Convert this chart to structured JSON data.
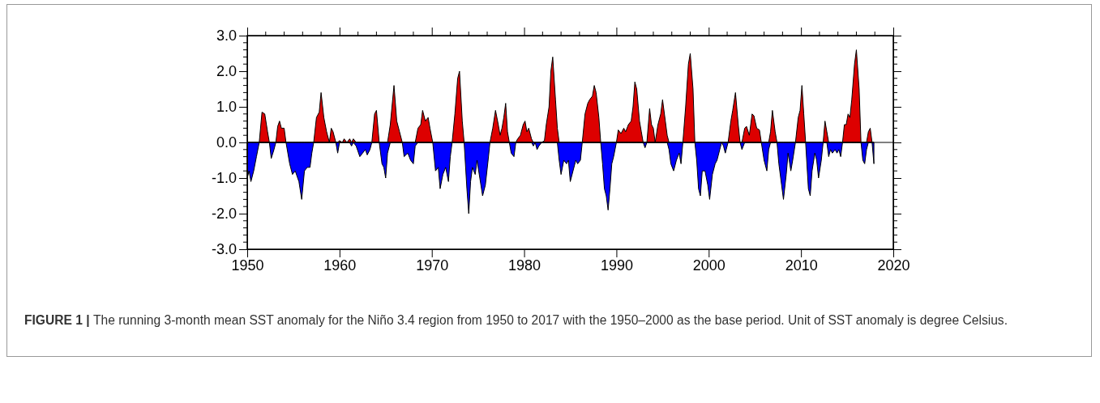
{
  "chart_data": {
    "type": "area",
    "x": [
      1950.0,
      1950.2,
      1950.4,
      1950.7,
      1951.0,
      1951.3,
      1951.6,
      1951.9,
      1952.2,
      1952.4,
      1952.6,
      1952.9,
      1953.1,
      1953.3,
      1953.5,
      1953.7,
      1954.0,
      1954.2,
      1954.6,
      1954.9,
      1955.2,
      1955.6,
      1955.9,
      1956.2,
      1956.5,
      1956.8,
      1957.0,
      1957.2,
      1957.5,
      1957.8,
      1958.0,
      1958.3,
      1958.6,
      1958.9,
      1959.1,
      1959.3,
      1959.6,
      1959.8,
      1960.0,
      1960.3,
      1960.5,
      1960.8,
      1961.1,
      1961.3,
      1961.5,
      1961.8,
      1962.2,
      1962.5,
      1962.8,
      1963.0,
      1963.3,
      1963.5,
      1963.8,
      1964.0,
      1964.3,
      1964.6,
      1964.8,
      1965.0,
      1965.2,
      1965.5,
      1965.9,
      1966.2,
      1966.5,
      1966.8,
      1967.0,
      1967.4,
      1967.7,
      1968.0,
      1968.2,
      1968.5,
      1968.8,
      1969.0,
      1969.3,
      1969.6,
      1969.8,
      1970.1,
      1970.4,
      1970.7,
      1970.9,
      1971.2,
      1971.5,
      1971.8,
      1972.0,
      1972.2,
      1972.5,
      1972.8,
      1973.0,
      1973.3,
      1973.5,
      1973.8,
      1974.0,
      1974.2,
      1974.4,
      1974.7,
      1974.9,
      1975.2,
      1975.5,
      1975.8,
      1976.1,
      1976.3,
      1976.6,
      1976.9,
      1977.2,
      1977.4,
      1977.6,
      1977.8,
      1978.0,
      1978.2,
      1978.4,
      1978.6,
      1978.9,
      1979.1,
      1979.3,
      1979.6,
      1979.9,
      1980.1,
      1980.3,
      1980.5,
      1980.8,
      1981.0,
      1981.2,
      1981.4,
      1981.6,
      1981.9,
      1982.2,
      1982.4,
      1982.7,
      1982.9,
      1983.1,
      1983.4,
      1983.6,
      1983.8,
      1984.0,
      1984.3,
      1984.6,
      1984.8,
      1985.0,
      1985.3,
      1985.6,
      1985.8,
      1986.1,
      1986.3,
      1986.6,
      1986.9,
      1987.1,
      1987.4,
      1987.6,
      1987.8,
      1988.1,
      1988.3,
      1988.5,
      1988.7,
      1988.9,
      1989.1,
      1989.3,
      1989.5,
      1989.7,
      1990.0,
      1990.2,
      1990.5,
      1990.8,
      1991.0,
      1991.3,
      1991.6,
      1991.8,
      1992.0,
      1992.2,
      1992.5,
      1992.7,
      1992.9,
      1993.1,
      1993.3,
      1993.6,
      1993.8,
      1994.0,
      1994.2,
      1994.5,
      1994.8,
      1995.0,
      1995.3,
      1995.5,
      1995.7,
      1995.9,
      1996.2,
      1996.5,
      1996.8,
      1997.0,
      1997.2,
      1997.5,
      1997.8,
      1998.0,
      1998.3,
      1998.5,
      1998.7,
      1998.9,
      1999.1,
      1999.3,
      1999.6,
      1999.9,
      2000.1,
      2000.4,
      2000.7,
      2000.9,
      2001.2,
      2001.4,
      2001.6,
      2001.8,
      2002.1,
      2002.4,
      2002.6,
      2002.9,
      2003.2,
      2003.4,
      2003.6,
      2003.9,
      2004.1,
      2004.4,
      2004.7,
      2004.9,
      2005.2,
      2005.5,
      2005.7,
      2006.0,
      2006.3,
      2006.5,
      2006.7,
      2006.9,
      2007.2,
      2007.4,
      2007.6,
      2007.9,
      2008.1,
      2008.4,
      2008.6,
      2008.9,
      2009.1,
      2009.4,
      2009.7,
      2009.9,
      2010.1,
      2010.3,
      2010.5,
      2010.8,
      2011.0,
      2011.2,
      2011.5,
      2011.7,
      2011.9,
      2012.2,
      2012.4,
      2012.6,
      2012.8,
      2013.0,
      2013.2,
      2013.4,
      2013.7,
      2013.9,
      2014.1,
      2014.3,
      2014.5,
      2014.7,
      2014.9,
      2015.1,
      2015.3,
      2015.5,
      2015.8,
      2016.0,
      2016.3,
      2016.5,
      2016.7,
      2016.9,
      2017.1,
      2017.3,
      2017.5,
      2017.7,
      2017.9
    ],
    "series": [
      {
        "color": "#dd0000",
        "values": [
          0,
          0,
          0,
          0,
          0,
          0,
          0.85,
          0.8,
          0.3,
          0,
          0,
          0,
          0,
          0.45,
          0.6,
          0.4,
          0.4,
          0,
          0,
          0,
          0,
          0,
          0,
          0,
          0,
          0,
          0,
          0,
          0.7,
          0.85,
          1.4,
          0.7,
          0.3,
          0,
          0.4,
          0.3,
          0,
          0,
          0.05,
          0,
          0.1,
          0,
          0.1,
          0,
          0.1,
          0,
          0,
          0,
          0,
          0,
          0,
          0,
          0.8,
          0.9,
          0,
          0,
          0,
          0,
          0,
          0.5,
          1.6,
          0.6,
          0.3,
          0,
          0,
          0,
          0,
          0,
          0,
          0.4,
          0.5,
          0.9,
          0.6,
          0.7,
          0.4,
          0,
          0,
          0,
          0,
          0,
          0,
          0,
          0,
          0,
          0.8,
          1.8,
          2.0,
          0.6,
          0,
          0,
          0,
          0,
          0,
          0,
          0,
          0,
          0,
          0,
          0,
          0,
          0.4,
          0.9,
          0.5,
          0.2,
          0.4,
          0.7,
          1.1,
          0.3,
          0,
          0,
          0,
          0,
          0.1,
          0.2,
          0.5,
          0.6,
          0.3,
          0.4,
          0.1,
          0,
          0,
          0,
          0,
          0,
          0.05,
          0.5,
          1.0,
          2.0,
          2.4,
          1.2,
          0.4,
          0,
          0,
          0,
          0,
          0,
          0,
          0,
          0,
          0,
          0,
          0,
          0.8,
          1.1,
          1.2,
          1.3,
          1.6,
          1.4,
          0.7,
          0,
          0,
          0,
          0,
          0,
          0,
          0,
          0,
          0,
          0.35,
          0.25,
          0.4,
          0.3,
          0.5,
          0.6,
          1.0,
          1.7,
          1.5,
          0.6,
          0.3,
          0,
          0,
          0,
          0.95,
          0.5,
          0.4,
          0,
          0.5,
          0.8,
          1.2,
          0.6,
          0.2,
          0,
          0,
          0,
          0,
          0,
          0,
          0,
          1.0,
          2.2,
          2.5,
          1.5,
          0,
          0,
          0,
          0,
          0,
          0,
          0,
          0,
          0,
          0,
          0,
          0,
          0,
          0,
          0,
          0,
          0.6,
          0.9,
          1.4,
          0.5,
          0,
          0,
          0.4,
          0.45,
          0.2,
          0.8,
          0.75,
          0.4,
          0.35,
          0,
          0,
          0,
          0,
          0.3,
          0.9,
          0.3,
          0,
          0,
          0,
          0,
          0,
          0,
          0,
          0,
          0,
          0.7,
          0.9,
          1.6,
          0.8,
          0,
          0,
          0,
          0,
          0,
          0,
          0,
          0,
          0,
          0.6,
          0.3,
          0,
          0,
          0,
          0,
          0,
          0,
          0,
          0,
          0.5,
          0.5,
          0.8,
          0.7,
          1.2,
          2.2,
          2.6,
          1.5,
          0,
          0,
          0,
          0,
          0.3,
          0.4,
          0,
          0
        ]
      },
      {
        "color": "#0000ff",
        "values": [
          -1.0,
          -0.8,
          -1.1,
          -0.8,
          -0.4,
          0,
          0,
          0,
          0,
          0,
          -0.45,
          -0.2,
          0,
          0,
          0,
          0,
          0,
          0,
          -0.6,
          -0.9,
          -0.8,
          -1.1,
          -1.6,
          -0.8,
          -0.7,
          -0.7,
          -0.3,
          0,
          0,
          0,
          0,
          0,
          0,
          0,
          0,
          0,
          0,
          -0.3,
          0,
          0,
          0,
          0,
          0,
          -0.1,
          0,
          -0.1,
          -0.4,
          -0.3,
          -0.2,
          -0.35,
          -0.2,
          0,
          0,
          0,
          0,
          -0.6,
          -0.7,
          -1.0,
          -0.3,
          0,
          0,
          0,
          0,
          0,
          -0.4,
          -0.3,
          -0.5,
          -0.6,
          -0.1,
          0,
          0,
          0,
          0,
          0,
          0,
          0,
          -0.8,
          -0.7,
          -1.3,
          -0.9,
          -0.7,
          -1.1,
          -0.4,
          0,
          0,
          0,
          0,
          0,
          0,
          -1.3,
          -2.0,
          -1.1,
          -0.7,
          -0.9,
          -0.5,
          -1.0,
          -1.5,
          -1.2,
          -0.5,
          0,
          0,
          0,
          0,
          0,
          0,
          0,
          0,
          0,
          0,
          -0.3,
          -0.4,
          0,
          0,
          0,
          0,
          0,
          0,
          0,
          0,
          -0.1,
          0,
          -0.2,
          -0.1,
          0,
          0,
          0,
          0,
          0,
          0,
          0,
          0,
          -0.5,
          -0.9,
          -0.5,
          -0.6,
          -0.5,
          -1.1,
          -0.8,
          -0.5,
          -0.6,
          -0.5,
          0,
          0,
          0,
          0,
          0,
          0,
          0,
          0,
          0,
          -0.6,
          -1.3,
          -1.5,
          -1.9,
          -1.3,
          -0.6,
          -0.4,
          0,
          0,
          0,
          0,
          0,
          0,
          0,
          0,
          0,
          0,
          0,
          0,
          0,
          -0.15,
          0,
          0,
          0,
          0,
          0,
          0,
          0,
          0,
          0,
          0,
          -0.2,
          -0.6,
          -0.8,
          -0.5,
          -0.3,
          -0.6,
          0,
          0,
          0,
          0,
          0,
          0,
          -0.5,
          -1.3,
          -1.5,
          -0.8,
          -0.8,
          -1.2,
          -1.6,
          -0.9,
          -0.6,
          -0.5,
          -0.2,
          0,
          -0.1,
          -0.3,
          0,
          0,
          0,
          0,
          0,
          0,
          -0.2,
          0,
          0,
          0,
          0,
          0,
          0,
          0,
          0,
          -0.5,
          -0.8,
          -0.2,
          0,
          0,
          0,
          0,
          -0.6,
          -1.2,
          -1.6,
          -0.9,
          -0.3,
          -0.8,
          -0.5,
          0,
          0,
          0,
          0,
          0,
          0,
          -1.3,
          -1.5,
          -0.8,
          -0.3,
          -0.5,
          -1.0,
          -0.5,
          0,
          0,
          0,
          -0.4,
          -0.2,
          -0.3,
          -0.2,
          -0.3,
          -0.2,
          -0.4,
          0,
          0,
          0,
          0,
          0,
          0,
          0,
          0,
          0,
          0,
          -0.5,
          -0.6,
          -0.2,
          0,
          0,
          0,
          -0.6
        ]
      }
    ],
    "xlim": [
      1950,
      2020
    ],
    "xticks": [
      1950,
      1960,
      1970,
      1980,
      1990,
      2000,
      2010,
      2020
    ],
    "ylim": [
      -3,
      3
    ],
    "yticks": [
      {
        "value": -3,
        "label": "-3.0"
      },
      {
        "value": -2,
        "label": "-2.0"
      },
      {
        "value": -1,
        "label": "-1.0"
      },
      {
        "value": 0,
        "label": "0.0"
      },
      {
        "value": 1,
        "label": "1.0"
      },
      {
        "value": 2,
        "label": "2.0"
      },
      {
        "value": 3,
        "label": "3.0"
      }
    ],
    "ref_lines": [
      {
        "axis": "y",
        "value": 0,
        "color": "#000000"
      }
    ],
    "grid": false,
    "annotations": [
      "FIGURE 1 |",
      "The running 3-month mean SST anomaly for the Niño 3.4 region from 1950 to 2017 with the 1950–2000 as the base period. Unit of SST anomaly is degree Celsius."
    ]
  }
}
